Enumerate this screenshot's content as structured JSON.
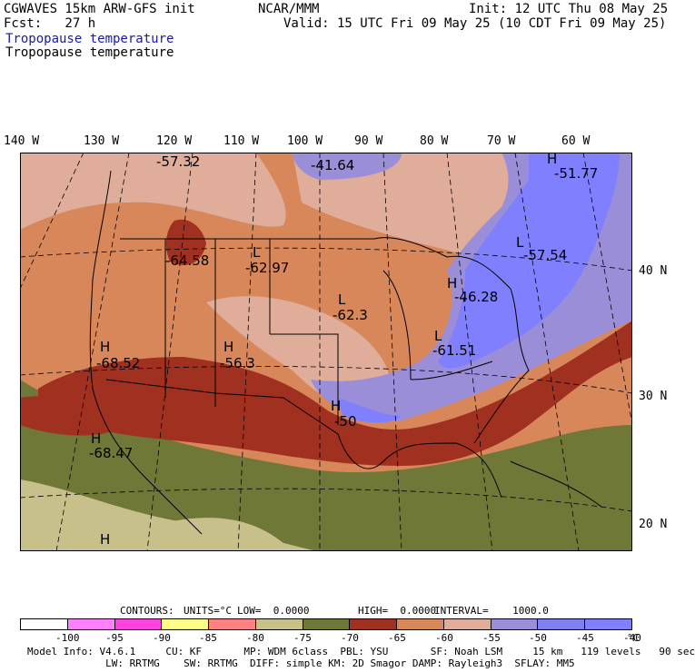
{
  "header": {
    "model_title": "CGWAVES 15km ARW-GFS init",
    "forecast": "Fcst:   27 h",
    "org": "NCAR/MMM",
    "init": "Init: 12 UTC Thu 08 May 25",
    "valid": "Valid: 15 UTC Fri 09 May 25 (10 CDT Fri 09 May 25)",
    "field_title_blue": "Tropopause temperature",
    "field_title_black": "Tropopause temperature"
  },
  "longitude_labels": [
    "140 W",
    "130 W",
    "120 W",
    "110 W",
    "100 W",
    "90 W",
    "80 W",
    "70 W",
    "60 W"
  ],
  "latitude_labels": [
    "40 N",
    "30 N",
    "20 N"
  ],
  "map_annotations": [
    {
      "letter": "",
      "value": "-57.32"
    },
    {
      "letter": "",
      "value": "-41.64"
    },
    {
      "letter": "H",
      "value": "-51.77"
    },
    {
      "letter": "",
      "value": "-64.58"
    },
    {
      "letter": "L",
      "value": "-62.97"
    },
    {
      "letter": "L",
      "value": "-57.54"
    },
    {
      "letter": "L",
      "value": "-62.3"
    },
    {
      "letter": "H",
      "value": "-46.28"
    },
    {
      "letter": "H",
      "value": "-68.52"
    },
    {
      "letter": "H",
      "value": "-56.3"
    },
    {
      "letter": "L",
      "value": "-61.51"
    },
    {
      "letter": "H",
      "value": "-50"
    },
    {
      "letter": "H",
      "value": "-68.47"
    },
    {
      "letter": "H",
      "value": ""
    }
  ],
  "contour_info": {
    "contours": "CONTOURS:",
    "units": "UNITS=°C",
    "low": "LOW=  0.0000",
    "high": "HIGH=  0.0000",
    "interval": "INTERVAL=    1000.0"
  },
  "colorbar": {
    "colors": [
      "#ffffff",
      "#ff7fff",
      "#ff44dd",
      "#ffff88",
      "#ff8080",
      "#c8c08a",
      "#707838",
      "#a03020",
      "#d8875a",
      "#e0ad9a",
      "#9a8ed8",
      "#8080f0",
      "#8080ff"
    ],
    "labels": [
      "-100",
      "-95",
      "-90",
      "-85",
      "-80",
      "-75",
      "-70",
      "-65",
      "-60",
      "-55",
      "-50",
      "-45",
      "-40"
    ],
    "unit": "°C"
  },
  "footer": {
    "line1": "Model Info: V4.6.1     CU: KF       MP: WDM 6class  PBL: YSU       SF: Noah LSM     15 km   119 levels   90 sec",
    "line2": "             LW: RRTMG    SW: RRTMG  DIFF: simple KM: 2D Smagor DAMP: Rayleigh3  SFLAY: MM5"
  }
}
